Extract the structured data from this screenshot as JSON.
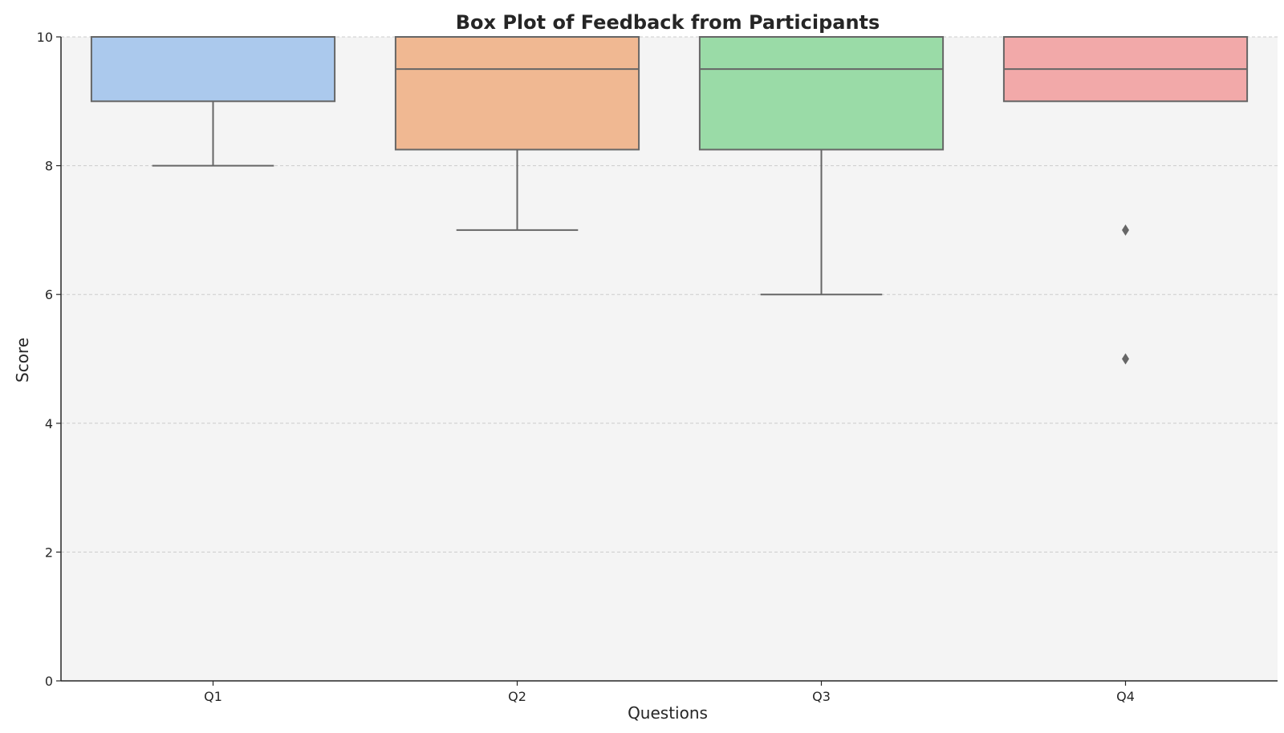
{
  "chart_data": {
    "type": "box",
    "title": "Box Plot of Feedback from Participants",
    "xlabel": "Questions",
    "ylabel": "Score",
    "ylim": [
      0,
      10
    ],
    "yticks": [
      0,
      2,
      4,
      6,
      8,
      10
    ],
    "grid": "y-dashed",
    "categories": [
      "Q1",
      "Q2",
      "Q3",
      "Q4"
    ],
    "boxes": [
      {
        "category": "Q1",
        "whisker_low": 8,
        "q1": 9,
        "median": 10,
        "q3": 10,
        "whisker_high": 10,
        "outliers": [],
        "color": "#abc9ed"
      },
      {
        "category": "Q2",
        "whisker_low": 7,
        "q1": 8.25,
        "median": 9.5,
        "q3": 10,
        "whisker_high": 10,
        "outliers": [],
        "color": "#f0b892"
      },
      {
        "category": "Q3",
        "whisker_low": 6,
        "q1": 8.25,
        "median": 9.5,
        "q3": 10,
        "whisker_high": 10,
        "outliers": [],
        "color": "#9adba7"
      },
      {
        "category": "Q4",
        "whisker_low": 9,
        "q1": 9,
        "median": 9.5,
        "q3": 10,
        "whisker_high": 10,
        "outliers": [
          7,
          5
        ],
        "color": "#f2a9a9"
      }
    ],
    "colors": {
      "plot_background": "#f4f4f4",
      "box_edge": "#666666",
      "grid": "#cccccc",
      "axis": "#262626"
    }
  }
}
